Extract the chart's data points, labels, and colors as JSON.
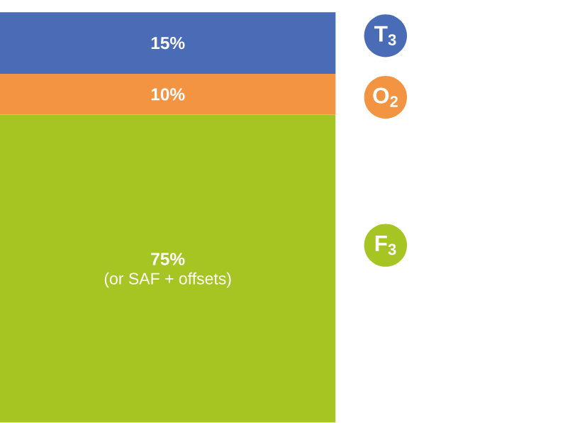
{
  "chart_data": {
    "type": "bar",
    "stacked": true,
    "categories": [
      null
    ],
    "series": [
      {
        "name": "F$_{3}$",
        "color": "#a6c523",
        "values": [
          75
        ],
        "value_labels": [
          "75%"
        ]
      },
      {
        "name": "O$_{2}$",
        "color": "#f39443",
        "values": [
          10
        ],
        "value_labels": [
          "10%"
        ]
      },
      {
        "name": "T$_{3}$",
        "color": "#4a6bb5",
        "values": [
          15
        ],
        "value_labels": [
          "15%"
        ]
      }
    ],
    "annotations": [
      "(or SAF + offsets)"
    ]
  }
}
